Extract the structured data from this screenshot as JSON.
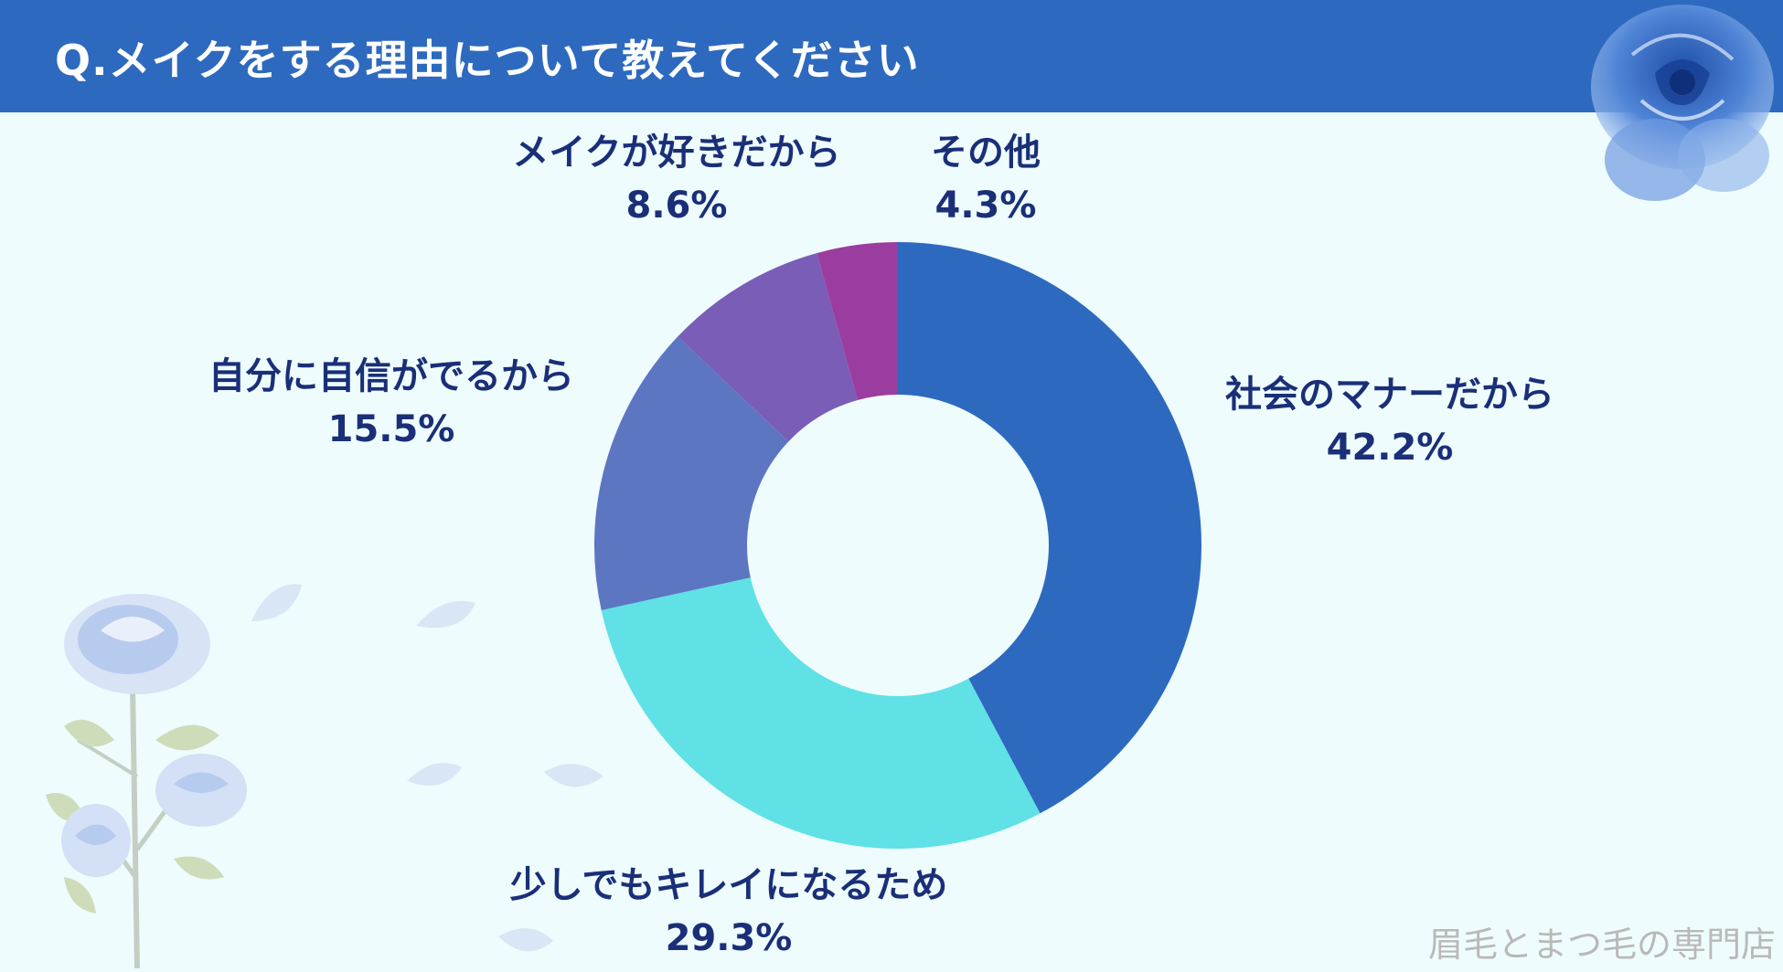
{
  "header": {
    "title": "Q.メイクをする理由について教えてください"
  },
  "watermark": "眉毛とまつ毛の専門店",
  "colors": {
    "header": "#2d6abf",
    "background": "#eefcfd",
    "label_text": "#1a2f78"
  },
  "chart_data": {
    "type": "pie",
    "title": "Q.メイクをする理由について教えてください",
    "donut": true,
    "slices": [
      {
        "label": "社会のマナーだから",
        "value": 42.2,
        "value_label": "42.2%",
        "color": "#2d6abf"
      },
      {
        "label": "少しでもキレイになるため",
        "value": 29.3,
        "value_label": "29.3%",
        "color": "#5fe1e6"
      },
      {
        "label": "自分に自信がでるから",
        "value": 15.5,
        "value_label": "15.5%",
        "color": "#5d76c2"
      },
      {
        "label": "メイクが好きだから",
        "value": 8.6,
        "value_label": "8.6%",
        "color": "#7a5db6"
      },
      {
        "label": "その他",
        "value": 4.3,
        "value_label": "4.3%",
        "color": "#9b3da0"
      }
    ]
  }
}
